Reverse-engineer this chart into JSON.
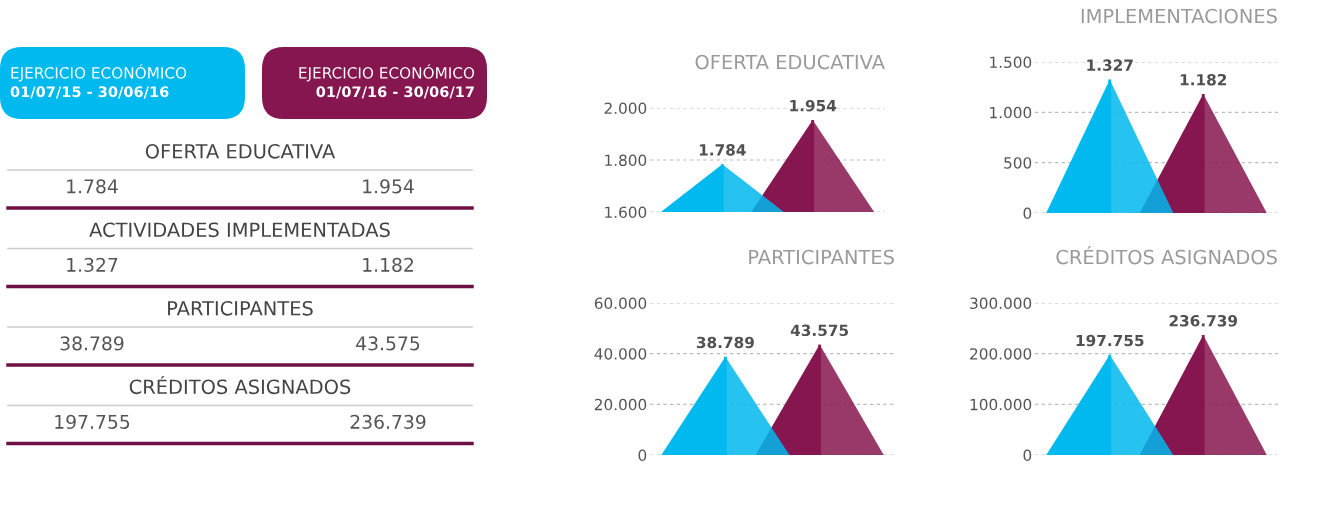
{
  "chart_data": [
    {
      "type": "other",
      "annotations": [
        "EJERCICIO ECONÓMICO\n01/07/15 - 30/06/16",
        "EJERCICIO ECONÓMICO\n01/07/16 - 30/06/17",
        "OFERTA EDUCATIVA",
        "1.784",
        "1.954",
        "ACTIVIDADES IMPLEMENTADAS",
        "1.327",
        "1.182",
        "PARTICIPANTES",
        "38.789",
        "43.575",
        "CRÉDITOS ASIGNADOS",
        "197.755",
        "236.739"
      ]
    },
    {
      "type": "bar",
      "title": "OFERTA EDUCATIVA",
      "categories": [
        null,
        null
      ],
      "values": [
        1784,
        1954
      ],
      "colors": [
        "#00b9ef",
        "#861650"
      ],
      "value_labels": [
        "1.784",
        "1.954"
      ],
      "ylim": [
        1600,
        2000
      ],
      "yticks": [
        {
          "value": 1600,
          "label": "1.600"
        },
        {
          "value": 1800,
          "label": "1.800"
        },
        {
          "value": 2000,
          "label": "2.000"
        }
      ],
      "grid": "y",
      "tick_labels": "y"
    },
    {
      "type": "bar",
      "title": "IMPLEMENTACIONES",
      "categories": [
        null,
        null
      ],
      "values": [
        1327,
        1182
      ],
      "colors": [
        "#00b9ef",
        "#861650"
      ],
      "value_labels": [
        "1.327",
        "1.182"
      ],
      "ylim": [
        0,
        1500
      ],
      "yticks": [
        0,
        500,
        {
          "value": 1000,
          "label": "1.000"
        },
        {
          "value": 1500,
          "label": "1.500"
        }
      ],
      "grid": "y",
      "tick_labels": "y"
    },
    {
      "type": "bar",
      "title": "PARTICIPANTES",
      "categories": [
        null,
        null
      ],
      "values": [
        38789,
        43575
      ],
      "colors": [
        "#00b9ef",
        "#861650"
      ],
      "value_labels": [
        "38.789",
        "43.575"
      ],
      "ylim": [
        0,
        60000
      ],
      "yticks": [
        0,
        {
          "value": 20000,
          "label": "20.000"
        },
        {
          "value": 40000,
          "label": "40.000"
        },
        {
          "value": 60000,
          "label": "60.000"
        }
      ],
      "grid": "y",
      "tick_labels": "y"
    },
    {
      "type": "bar",
      "title": "CRÉDITOS ASIGNADOS",
      "categories": [
        null,
        null
      ],
      "values": [
        197755,
        236739
      ],
      "colors": [
        "#00b9ef",
        "#861650"
      ],
      "value_labels": [
        "197.755",
        "236.739"
      ],
      "ylim": [
        0,
        300000
      ],
      "yticks": [
        0,
        {
          "value": 100000,
          "label": "100.000"
        },
        {
          "value": 200000,
          "label": "200.000"
        },
        {
          "value": 300000,
          "label": "300.000"
        }
      ],
      "grid": "y",
      "tick_labels": "y"
    }
  ]
}
